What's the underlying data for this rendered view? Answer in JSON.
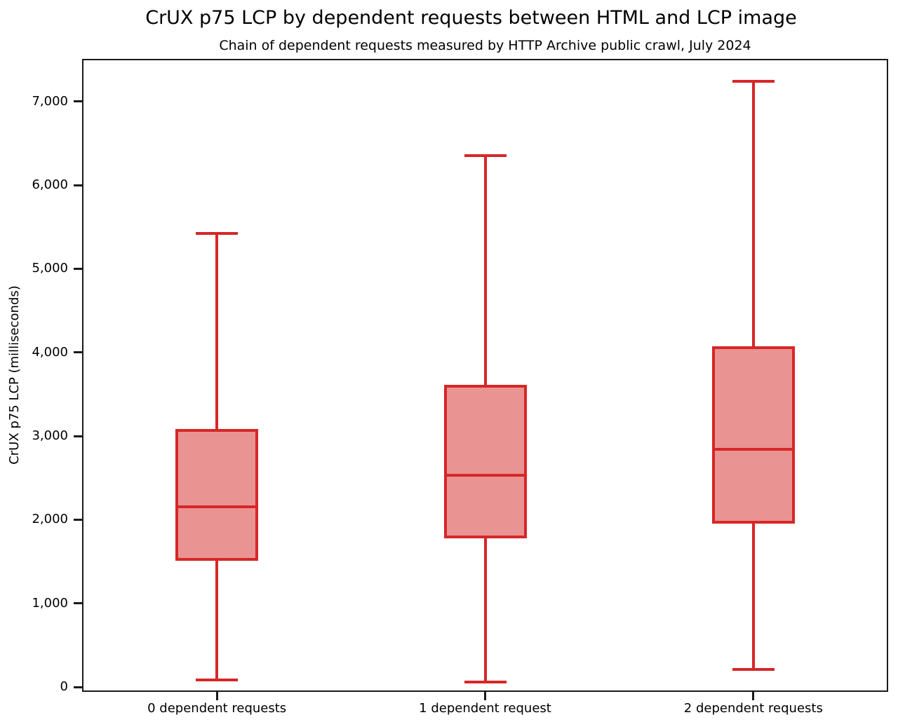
{
  "chart_data": {
    "type": "box",
    "title": "CrUX p75 LCP by dependent requests between HTML and LCP image",
    "subtitle": "Chain of dependent requests measured by HTTP Archive public crawl, July 2024",
    "ylabel": "CrUX p75 LCP (milliseconds)",
    "xlabel": "",
    "categories": [
      "0 dependent requests",
      "1 dependent request",
      "2 dependent requests"
    ],
    "series": [
      {
        "name": "0 dependent requests",
        "whisker_low": 80,
        "q1": 1510,
        "median": 2150,
        "q3": 3080,
        "whisker_high": 5420
      },
      {
        "name": "1 dependent request",
        "whisker_low": 60,
        "q1": 1780,
        "median": 2530,
        "q3": 3610,
        "whisker_high": 6350
      },
      {
        "name": "2 dependent requests",
        "whisker_low": 210,
        "q1": 1950,
        "median": 2840,
        "q3": 4070,
        "whisker_high": 7240
      }
    ],
    "yticks": [
      0,
      1000,
      2000,
      3000,
      4000,
      5000,
      6000,
      7000
    ],
    "ytick_labels": [
      "0",
      "1,000",
      "2,000",
      "3,000",
      "4,000",
      "5,000",
      "6,000",
      "7,000"
    ],
    "ylim": [
      -50,
      7500
    ],
    "grid": false,
    "legend": null,
    "outliers": [],
    "colors": {
      "box_edge": "#d62728",
      "box_fill": "#ea9393",
      "axis": "#1a1a1a",
      "text": "#000000",
      "background": "#ffffff"
    }
  }
}
